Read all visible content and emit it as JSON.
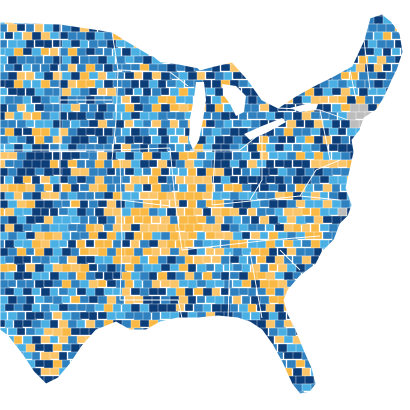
{
  "map": {
    "region": "contiguous-united-states-east-and-central",
    "style": "county-choropleth",
    "category_colors": {
      "category_1": "#0b3d79",
      "category_2": "#2f80be",
      "category_3": "#4ab0e4",
      "category_4": "#f9b944",
      "category_5": "#fbc56a",
      "no_data": "#bdbdbd"
    },
    "background_color": "#ffffff",
    "border_color": "#ffffff",
    "legend": null
  }
}
